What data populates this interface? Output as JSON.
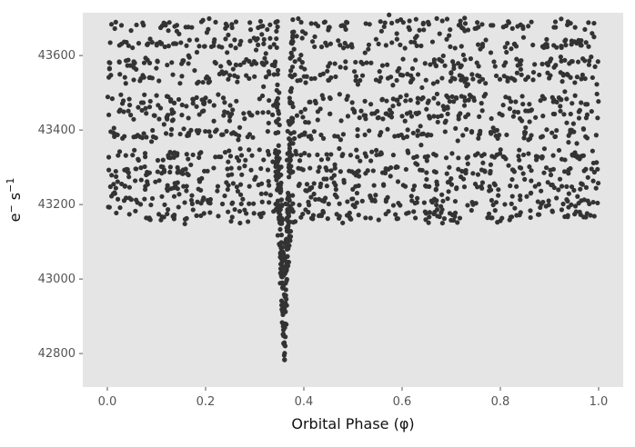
{
  "chart_data": {
    "type": "scatter",
    "title": "",
    "xlabel": "Orbital Phase ($\\phi$)",
    "ylabel": "e$^-$ s$^{-1}$",
    "xlim": [
      -0.05,
      1.05
    ],
    "ylim": [
      42710,
      43715
    ],
    "xticks": [
      0.0,
      0.2,
      0.4,
      0.6,
      0.8,
      1.0
    ],
    "xtick_labels": [
      "0.0",
      "0.2",
      "0.4",
      "0.6",
      "0.8",
      "1.0"
    ],
    "yticks": [
      42800,
      43000,
      43200,
      43400,
      43600
    ],
    "ytick_labels": [
      "42800",
      "43000",
      "43200",
      "43400",
      "43600"
    ],
    "grid": false,
    "legend": "none",
    "point_color": "#333333",
    "background_color": "#e5e5e5",
    "series": [
      {
        "description_points": "dense phase-folded light curve",
        "x_range": [
          0.0,
          1.0
        ],
        "baseline_band_levels": [
          43170,
          43210,
          43250,
          43290,
          43330,
          43390,
          43440,
          43480,
          43540,
          43580,
          43630,
          43680
        ],
        "transit_center_phase": 0.36,
        "transit_min_flux": 42765,
        "transit_half_width_phase": 0.015
      }
    ]
  }
}
